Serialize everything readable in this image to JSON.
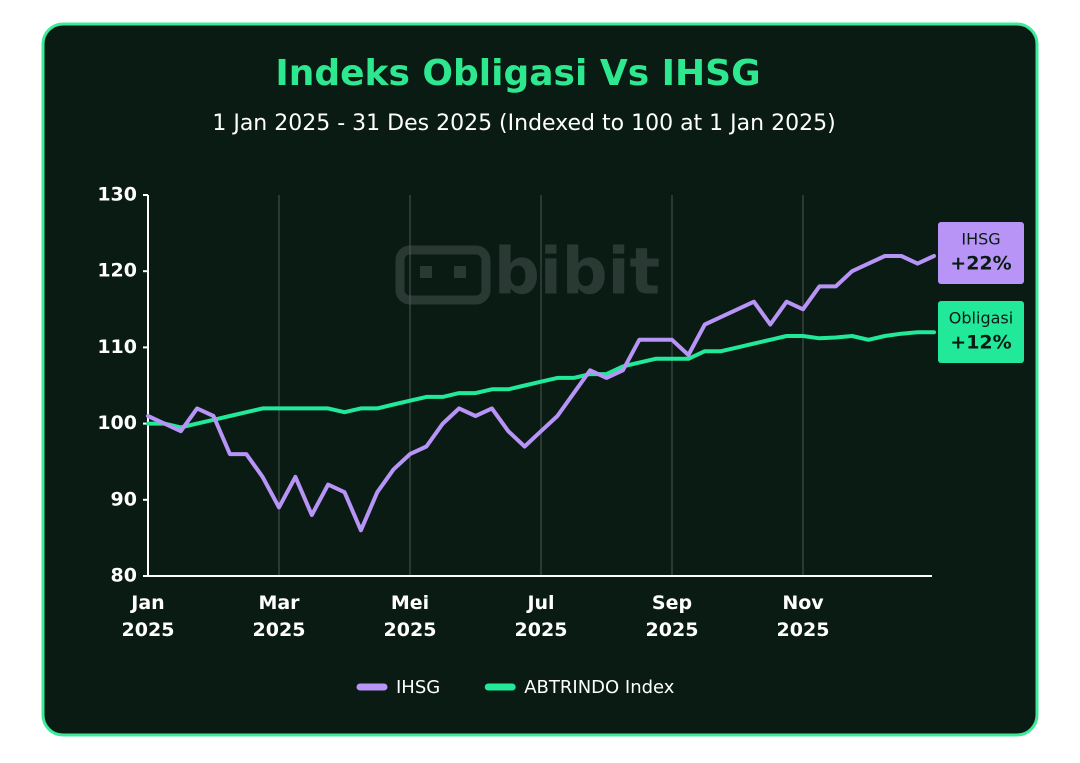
{
  "chart_data": {
    "type": "line",
    "title": "Indeks Obligasi Vs IHSG",
    "subtitle": "1 Jan 2025 - 31 Des 2025 (Indexed to 100 at 1 Jan 2025)",
    "watermark": "bibit",
    "categories": [
      "Jan 2025",
      null,
      null,
      null,
      null,
      null,
      null,
      null,
      "Mar 2025",
      null,
      null,
      null,
      null,
      null,
      null,
      null,
      "Mei 2025",
      null,
      null,
      null,
      null,
      null,
      null,
      null,
      "Jul 2025",
      null,
      null,
      null,
      null,
      null,
      null,
      null,
      "Sep 2025",
      null,
      null,
      null,
      null,
      null,
      null,
      null,
      "Nov 2025",
      null,
      null,
      null,
      null,
      null,
      null,
      null,
      null
    ],
    "series": [
      {
        "name": "IHSG",
        "color": "#b794f6",
        "values": [
          101,
          100,
          99,
          102,
          101,
          96,
          96,
          93,
          89,
          93,
          88,
          92,
          91,
          86,
          91,
          94,
          96,
          97,
          100,
          102,
          101,
          102,
          99,
          97,
          99,
          101,
          104,
          107,
          106,
          107,
          111,
          111,
          111,
          109,
          113,
          114,
          115,
          116,
          113,
          116,
          115,
          118,
          118,
          120,
          121,
          122,
          122,
          121,
          122
        ]
      },
      {
        "name": "ABTRINDO Index",
        "color": "#22e89a",
        "values": [
          100,
          100,
          99.5,
          100,
          100.5,
          101,
          101.5,
          102,
          102,
          102,
          102,
          102,
          101.5,
          102,
          102,
          102.5,
          103,
          103.5,
          103.5,
          104,
          104,
          104.5,
          104.5,
          105,
          105.5,
          106,
          106,
          106.5,
          106.5,
          107.5,
          108,
          108.5,
          108.5,
          108.5,
          109.5,
          109.5,
          110,
          110.5,
          111,
          111.5,
          111.5,
          111.2,
          111.3,
          111.5,
          111,
          111.5,
          111.8,
          112,
          112
        ]
      }
    ],
    "annotations": [
      {
        "text": "IHSG",
        "value_label": "+22%"
      },
      {
        "text": "Obligasi",
        "value_label": "+12%"
      }
    ],
    "ylim": [
      80,
      130
    ],
    "yticks": [
      80,
      90,
      100,
      110,
      120,
      130
    ],
    "grid": true,
    "legend": "bottom"
  }
}
